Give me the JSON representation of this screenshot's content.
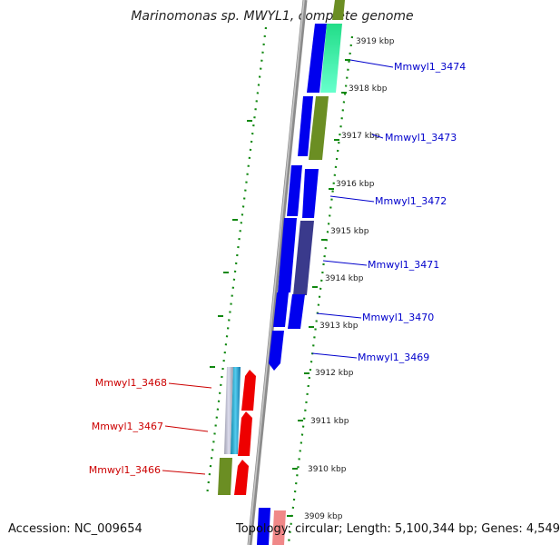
{
  "title": "Marinomonas sp. MWYL1, complete genome",
  "accession": "Accession: NC_009654",
  "topology": "Topology: circular; Length: 5,100,344 bp; Genes: 4,549",
  "colors": {
    "forward_label": "#0000cc",
    "reverse_label": "#cc0000",
    "backbone": "#888888",
    "gc_dots": "#118811",
    "cds_blue": "#0000ee",
    "cds_red": "#ee0000",
    "cds_olive": "#6b8e23",
    "cds_mint": "#33ee99",
    "cds_slate": "#3a3a8c"
  },
  "scale": {
    "unit": "kbp",
    "ticks": [
      "3919 kbp",
      "3918 kbp",
      "3917 kbp",
      "3916 kbp",
      "3915 kbp",
      "3914 kbp",
      "3913 kbp",
      "3912 kbp",
      "3911 kbp",
      "3910 kbp",
      "3909 kbp"
    ]
  },
  "genes_forward": [
    {
      "label": "Mmwyl1_3474"
    },
    {
      "label": "Mmwyl1_3473"
    },
    {
      "label": "Mmwyl1_3472"
    },
    {
      "label": "Mmwyl1_3471"
    },
    {
      "label": "Mmwyl1_3470"
    },
    {
      "label": "Mmwyl1_3469"
    }
  ],
  "genes_reverse": [
    {
      "label": "Mmwyl1_3468"
    },
    {
      "label": "Mmwyl1_3467"
    },
    {
      "label": "Mmwyl1_3466"
    }
  ]
}
